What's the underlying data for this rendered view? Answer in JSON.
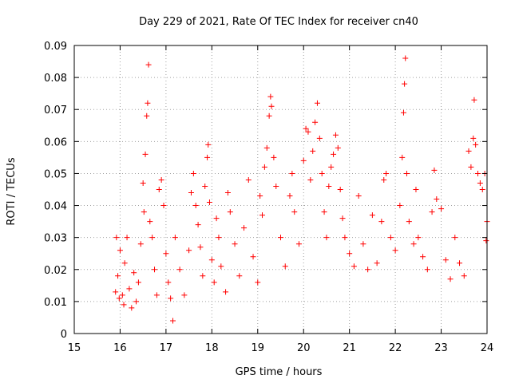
{
  "chart_data": {
    "type": "scatter",
    "title": "Day 229 of 2021, Rate Of TEC Index for receiver cn40",
    "xlabel": "GPS time / hours",
    "ylabel": "ROTI / TECUs",
    "xlim": [
      15,
      24
    ],
    "ylim": [
      0,
      0.09
    ],
    "x_ticks": [
      15,
      16,
      17,
      18,
      19,
      20,
      21,
      22,
      23,
      24
    ],
    "y_ticks": [
      0,
      0.01,
      0.02,
      0.03,
      0.04,
      0.05,
      0.06,
      0.07,
      0.08,
      0.09
    ],
    "x_tick_labels": [
      "15",
      "16",
      "17",
      "18",
      "19",
      "20",
      "21",
      "22",
      "23",
      "24"
    ],
    "y_tick_labels": [
      "0",
      "0.01",
      "0.02",
      "0.03",
      "0.04",
      "0.05",
      "0.06",
      "0.07",
      "0.08",
      "0.09"
    ],
    "grid": true,
    "marker": "plus",
    "color": "#ff0000",
    "series": [
      {
        "values_note_free": true,
        "points": [
          [
            15.9,
            0.013
          ],
          [
            15.92,
            0.03
          ],
          [
            15.95,
            0.018
          ],
          [
            15.98,
            0.011
          ],
          [
            16.0,
            0.026
          ],
          [
            16.05,
            0.012
          ],
          [
            16.08,
            0.009
          ],
          [
            16.1,
            0.022
          ],
          [
            16.15,
            0.03
          ],
          [
            16.2,
            0.014
          ],
          [
            16.25,
            0.008
          ],
          [
            16.3,
            0.019
          ],
          [
            16.35,
            0.01
          ],
          [
            16.4,
            0.016
          ],
          [
            16.45,
            0.028
          ],
          [
            16.5,
            0.047
          ],
          [
            16.52,
            0.038
          ],
          [
            16.55,
            0.056
          ],
          [
            16.58,
            0.068
          ],
          [
            16.6,
            0.072
          ],
          [
            16.62,
            0.084
          ],
          [
            16.65,
            0.035
          ],
          [
            16.7,
            0.03
          ],
          [
            16.75,
            0.02
          ],
          [
            16.8,
            0.012
          ],
          [
            16.85,
            0.045
          ],
          [
            16.9,
            0.048
          ],
          [
            16.95,
            0.04
          ],
          [
            17.0,
            0.025
          ],
          [
            17.05,
            0.016
          ],
          [
            17.1,
            0.011
          ],
          [
            17.15,
            0.004
          ],
          [
            17.2,
            0.03
          ],
          [
            17.3,
            0.02
          ],
          [
            17.4,
            0.012
          ],
          [
            17.5,
            0.026
          ],
          [
            17.55,
            0.044
          ],
          [
            17.6,
            0.05
          ],
          [
            17.65,
            0.04
          ],
          [
            17.7,
            0.034
          ],
          [
            17.75,
            0.027
          ],
          [
            17.8,
            0.018
          ],
          [
            17.85,
            0.046
          ],
          [
            17.9,
            0.055
          ],
          [
            17.92,
            0.059
          ],
          [
            17.95,
            0.041
          ],
          [
            18.0,
            0.023
          ],
          [
            18.05,
            0.016
          ],
          [
            18.1,
            0.036
          ],
          [
            18.15,
            0.03
          ],
          [
            18.2,
            0.021
          ],
          [
            18.3,
            0.013
          ],
          [
            18.35,
            0.044
          ],
          [
            18.4,
            0.038
          ],
          [
            18.5,
            0.028
          ],
          [
            18.6,
            0.018
          ],
          [
            18.7,
            0.033
          ],
          [
            18.8,
            0.048
          ],
          [
            18.9,
            0.024
          ],
          [
            19.0,
            0.016
          ],
          [
            19.05,
            0.043
          ],
          [
            19.1,
            0.037
          ],
          [
            19.15,
            0.052
          ],
          [
            19.2,
            0.058
          ],
          [
            19.25,
            0.068
          ],
          [
            19.28,
            0.074
          ],
          [
            19.3,
            0.071
          ],
          [
            19.35,
            0.055
          ],
          [
            19.4,
            0.046
          ],
          [
            19.5,
            0.03
          ],
          [
            19.6,
            0.021
          ],
          [
            19.7,
            0.043
          ],
          [
            19.75,
            0.05
          ],
          [
            19.8,
            0.038
          ],
          [
            19.9,
            0.028
          ],
          [
            20.0,
            0.054
          ],
          [
            20.05,
            0.064
          ],
          [
            20.1,
            0.063
          ],
          [
            20.15,
            0.048
          ],
          [
            20.2,
            0.057
          ],
          [
            20.25,
            0.066
          ],
          [
            20.3,
            0.072
          ],
          [
            20.35,
            0.061
          ],
          [
            20.4,
            0.05
          ],
          [
            20.45,
            0.038
          ],
          [
            20.5,
            0.03
          ],
          [
            20.55,
            0.046
          ],
          [
            20.6,
            0.052
          ],
          [
            20.65,
            0.056
          ],
          [
            20.7,
            0.062
          ],
          [
            20.75,
            0.058
          ],
          [
            20.8,
            0.045
          ],
          [
            20.85,
            0.036
          ],
          [
            20.9,
            0.03
          ],
          [
            21.0,
            0.025
          ],
          [
            21.1,
            0.021
          ],
          [
            21.2,
            0.043
          ],
          [
            21.3,
            0.028
          ],
          [
            21.4,
            0.02
          ],
          [
            21.5,
            0.037
          ],
          [
            21.6,
            0.022
          ],
          [
            21.7,
            0.035
          ],
          [
            21.75,
            0.048
          ],
          [
            21.8,
            0.05
          ],
          [
            21.9,
            0.03
          ],
          [
            22.0,
            0.026
          ],
          [
            22.1,
            0.04
          ],
          [
            22.15,
            0.055
          ],
          [
            22.18,
            0.069
          ],
          [
            22.2,
            0.078
          ],
          [
            22.22,
            0.086
          ],
          [
            22.25,
            0.05
          ],
          [
            22.3,
            0.035
          ],
          [
            22.4,
            0.028
          ],
          [
            22.45,
            0.045
          ],
          [
            22.5,
            0.03
          ],
          [
            22.6,
            0.024
          ],
          [
            22.7,
            0.02
          ],
          [
            22.8,
            0.038
          ],
          [
            22.85,
            0.051
          ],
          [
            22.9,
            0.042
          ],
          [
            23.0,
            0.039
          ],
          [
            23.1,
            0.023
          ],
          [
            23.2,
            0.017
          ],
          [
            23.3,
            0.03
          ],
          [
            23.4,
            0.022
          ],
          [
            23.5,
            0.018
          ],
          [
            23.6,
            0.057
          ],
          [
            23.65,
            0.052
          ],
          [
            23.7,
            0.061
          ],
          [
            23.72,
            0.073
          ],
          [
            23.75,
            0.059
          ],
          [
            23.8,
            0.05
          ],
          [
            23.85,
            0.047
          ],
          [
            23.9,
            0.045
          ],
          [
            23.95,
            0.05
          ],
          [
            23.98,
            0.029
          ],
          [
            24.0,
            0.035
          ]
        ]
      }
    ]
  }
}
